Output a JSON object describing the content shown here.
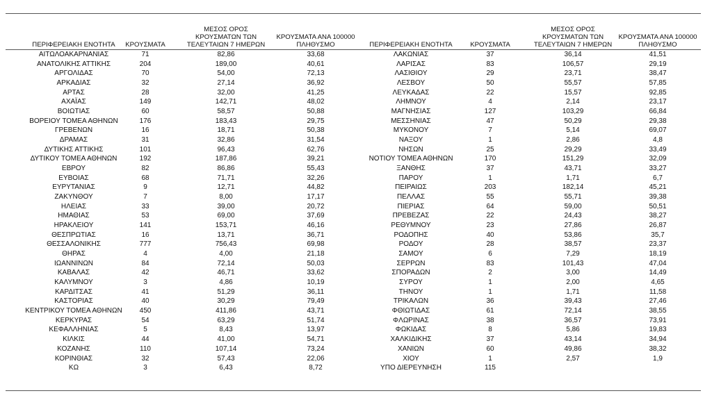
{
  "headers": {
    "region": "ΠΕΡΙΦΕΡΕΙΑΚΗ ΕΝΟΤΗΤΑ",
    "cases": "ΚΡΟΥΣΜΑΤΑ",
    "avg7": "ΜΕΣΟΣ ΟΡΟΣ\nΚΡΟΥΣΜΑΤΩΝ ΤΩΝ\nΤΕΛΕΥΤΑΙΩΝ 7 ΗΜΕΡΩΝ",
    "per100k": "ΚΡΟΥΣΜΑΤΑ ΑΝΑ 100000\nΠΛΗΘΥΣΜΟ"
  },
  "left_rows": [
    [
      "ΑΙΤΩΛΟΑΚΑΡΝΑΝΙΑΣ",
      "71",
      "82,86",
      "33,68"
    ],
    [
      "ΑΝΑΤΟΛΙΚΗΣ ΑΤΤΙΚΗΣ",
      "204",
      "189,00",
      "40,61"
    ],
    [
      "ΑΡΓΟΛΙΔΑΣ",
      "70",
      "54,00",
      "72,13"
    ],
    [
      "ΑΡΚΑΔΙΑΣ",
      "32",
      "27,14",
      "36,92"
    ],
    [
      "ΑΡΤΑΣ",
      "28",
      "32,00",
      "41,25"
    ],
    [
      "ΑΧΑΪΑΣ",
      "149",
      "142,71",
      "48,02"
    ],
    [
      "ΒΟΙΩΤΙΑΣ",
      "60",
      "58,57",
      "50,88"
    ],
    [
      "ΒΟΡΕΙΟΥ ΤΟΜΕΑ ΑΘΗΝΩΝ",
      "176",
      "183,43",
      "29,75"
    ],
    [
      "ΓΡΕΒΕΝΩΝ",
      "16",
      "18,71",
      "50,38"
    ],
    [
      "ΔΡΑΜΑΣ",
      "31",
      "32,86",
      "31,54"
    ],
    [
      "ΔΥΤΙΚΗΣ ΑΤΤΙΚΗΣ",
      "101",
      "96,43",
      "62,76"
    ],
    [
      "ΔΥΤΙΚΟΥ ΤΟΜΕΑ ΑΘΗΝΩΝ",
      "192",
      "187,86",
      "39,21"
    ],
    [
      "ΕΒΡΟΥ",
      "82",
      "86,86",
      "55,43"
    ],
    [
      "ΕΥΒΟΙΑΣ",
      "68",
      "71,71",
      "32,26"
    ],
    [
      "ΕΥΡΥΤΑΝΙΑΣ",
      "9",
      "12,71",
      "44,82"
    ],
    [
      "ΖΑΚΥΝΘΟΥ",
      "7",
      "8,00",
      "17,17"
    ],
    [
      "ΗΛΕΙΑΣ",
      "33",
      "39,00",
      "20,72"
    ],
    [
      "ΗΜΑΘΙΑΣ",
      "53",
      "69,00",
      "37,69"
    ],
    [
      "ΗΡΑΚΛΕΙΟΥ",
      "141",
      "153,71",
      "46,16"
    ],
    [
      "ΘΕΣΠΡΩΤΙΑΣ",
      "16",
      "13,71",
      "36,71"
    ],
    [
      "ΘΕΣΣΑΛΟΝΙΚΗΣ",
      "777",
      "756,43",
      "69,98"
    ],
    [
      "ΘΗΡΑΣ",
      "4",
      "4,00",
      "21,18"
    ],
    [
      "ΙΩΑΝΝΙΝΩΝ",
      "84",
      "72,14",
      "50,03"
    ],
    [
      "ΚΑΒΑΛΑΣ",
      "42",
      "46,71",
      "33,62"
    ],
    [
      "ΚΑΛΥΜΝΟΥ",
      "3",
      "4,86",
      "10,19"
    ],
    [
      "ΚΑΡΔΙΤΣΑΣ",
      "41",
      "51,29",
      "36,11"
    ],
    [
      "ΚΑΣΤΟΡΙΑΣ",
      "40",
      "30,29",
      "79,49"
    ],
    [
      "ΚΕΝΤΡΙΚΟΥ ΤΟΜΕΑ ΑΘΗΝΩΝ",
      "450",
      "411,86",
      "43,71"
    ],
    [
      "ΚΕΡΚΥΡΑΣ",
      "54",
      "63,29",
      "51,74"
    ],
    [
      "ΚΕΦΑΛΛΗΝΙΑΣ",
      "5",
      "8,43",
      "13,97"
    ],
    [
      "ΚΙΛΚΙΣ",
      "44",
      "41,00",
      "54,71"
    ],
    [
      "ΚΟΖΑΝΗΣ",
      "110",
      "107,14",
      "73,24"
    ],
    [
      "ΚΟΡΙΝΘΙΑΣ",
      "32",
      "57,43",
      "22,06"
    ],
    [
      "ΚΩ",
      "3",
      "6,43",
      "8,72"
    ]
  ],
  "right_rows": [
    [
      "ΛΑΚΩΝΙΑΣ",
      "37",
      "36,14",
      "41,51"
    ],
    [
      "ΛΑΡΙΣΑΣ",
      "83",
      "106,57",
      "29,19"
    ],
    [
      "ΛΑΣΙΘΙΟΥ",
      "29",
      "23,71",
      "38,47"
    ],
    [
      "ΛΕΣΒΟΥ",
      "50",
      "55,57",
      "57,85"
    ],
    [
      "ΛΕΥΚΑΔΑΣ",
      "22",
      "15,57",
      "92,85"
    ],
    [
      "ΛΗΜΝΟΥ",
      "4",
      "2,14",
      "23,17"
    ],
    [
      "ΜΑΓΝΗΣΙΑΣ",
      "127",
      "103,29",
      "66,84"
    ],
    [
      "ΜΕΣΣΗΝΙΑΣ",
      "47",
      "50,29",
      "29,38"
    ],
    [
      "ΜΥΚΟΝΟΥ",
      "7",
      "5,14",
      "69,07"
    ],
    [
      "ΝΑΞΟΥ",
      "1",
      "2,86",
      "4,8"
    ],
    [
      "ΝΗΣΩΝ",
      "25",
      "29,29",
      "33,49"
    ],
    [
      "ΝΟΤΙΟΥ ΤΟΜΕΑ ΑΘΗΝΩΝ",
      "170",
      "151,29",
      "32,09"
    ],
    [
      "ΞΑΝΘΗΣ",
      "37",
      "43,71",
      "33,27"
    ],
    [
      "ΠΑΡΟΥ",
      "1",
      "1,71",
      "6,7"
    ],
    [
      "ΠΕΙΡΑΙΩΣ",
      "203",
      "182,14",
      "45,21"
    ],
    [
      "ΠΕΛΛΑΣ",
      "55",
      "55,71",
      "39,38"
    ],
    [
      "ΠΙΕΡΙΑΣ",
      "64",
      "59,00",
      "50,51"
    ],
    [
      "ΠΡΕΒΕΖΑΣ",
      "22",
      "24,43",
      "38,27"
    ],
    [
      "ΡΕΘΥΜΝΟΥ",
      "23",
      "27,86",
      "26,87"
    ],
    [
      "ΡΟΔΟΠΗΣ",
      "40",
      "53,86",
      "35,7"
    ],
    [
      "ΡΟΔΟΥ",
      "28",
      "38,57",
      "23,37"
    ],
    [
      "ΣΑΜΟΥ",
      "6",
      "7,29",
      "18,19"
    ],
    [
      "ΣΕΡΡΩΝ",
      "83",
      "101,43",
      "47,04"
    ],
    [
      "ΣΠΟΡΑΔΩΝ",
      "2",
      "3,00",
      "14,49"
    ],
    [
      "ΣΥΡΟΥ",
      "1",
      "2,00",
      "4,65"
    ],
    [
      "ΤΗΝΟΥ",
      "1",
      "1,71",
      "11,58"
    ],
    [
      "ΤΡΙΚΑΛΩΝ",
      "36",
      "39,43",
      "27,46"
    ],
    [
      "ΦΘΙΩΤΙΔΑΣ",
      "61",
      "72,14",
      "38,55"
    ],
    [
      "ΦΛΩΡΙΝΑΣ",
      "38",
      "36,57",
      "73,91"
    ],
    [
      "ΦΩΚΙΔΑΣ",
      "8",
      "5,86",
      "19,83"
    ],
    [
      "ΧΑΛΚΙΔΙΚΗΣ",
      "37",
      "43,14",
      "34,94"
    ],
    [
      "ΧΑΝΙΩΝ",
      "60",
      "49,86",
      "38,32"
    ],
    [
      "ΧΙΟΥ",
      "1",
      "2,57",
      "1,9"
    ],
    [
      "ΥΠΟ ΔΙΕΡΕΥΝΗΣΗ",
      "115",
      "",
      ""
    ]
  ]
}
